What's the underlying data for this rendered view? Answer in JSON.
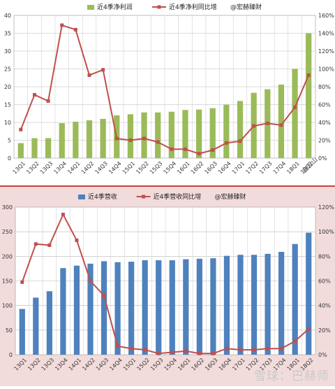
{
  "chart_data": [
    {
      "type": "bar+line",
      "categories": [
        "13Q1",
        "13Q2",
        "13Q3",
        "13Q4",
        "14Q1",
        "14Q2",
        "14Q3",
        "14Q4",
        "15Q1",
        "15Q2",
        "15Q3",
        "15Q4",
        "16Q1",
        "16Q2",
        "16Q3",
        "16Q4",
        "17Q1",
        "17Q2",
        "17Q3",
        "17Q4",
        "18Q1",
        "18Q2"
      ],
      "legend": [
        "近4季净利润",
        "近4季净利同比增",
        "@宏赫臻财"
      ],
      "legend_position": "top",
      "series": [
        {
          "name": "近4季净利润",
          "kind": "bar",
          "axis": "left",
          "color": "#9bbb59",
          "values": [
            4.2,
            5.6,
            5.6,
            9.8,
            10.2,
            10.6,
            11,
            12,
            12.3,
            12.8,
            12.8,
            13,
            13.5,
            13.6,
            14,
            15,
            16,
            18.3,
            19.3,
            20.6,
            25,
            35
          ]
        },
        {
          "name": "近4季净利同比增",
          "kind": "line",
          "axis": "right",
          "color": "#c0504d",
          "values": [
            32,
            71,
            64,
            149,
            144,
            93,
            99,
            22,
            20,
            22,
            18,
            10,
            10,
            5,
            9,
            17,
            19,
            36,
            39,
            37,
            57,
            93
          ]
        }
      ],
      "ylim_left": [
        0,
        40
      ],
      "ylim_right": [
        0,
        160
      ],
      "yticks_left": [
        "0",
        "5",
        "10",
        "15",
        "20",
        "25",
        "30",
        "35",
        "40"
      ],
      "yticks_right": [
        "0%",
        "20%",
        "40%",
        "60%",
        "80%",
        "100%",
        "120%",
        "140%",
        "160%"
      ],
      "grid": true,
      "annotation": "白云山"
    },
    {
      "type": "bar+line",
      "categories": [
        "13Q1",
        "13Q2",
        "13Q3",
        "13Q4",
        "14Q1",
        "14Q2",
        "14Q3",
        "14Q4",
        "15Q1",
        "15Q2",
        "15Q3",
        "15Q4",
        "16Q1",
        "16Q2",
        "16Q3",
        "16Q4",
        "17Q1",
        "17Q2",
        "17Q3",
        "17Q4",
        "18Q1",
        "18Q2"
      ],
      "legend": [
        "近4季营收",
        "近4季营收同比增",
        "@宏赫臻财"
      ],
      "legend_position": "top",
      "series": [
        {
          "name": "近4季营收",
          "kind": "bar",
          "axis": "left",
          "color": "#4f81bd",
          "values": [
            93,
            116,
            129,
            176,
            181,
            185,
            190,
            188,
            189,
            192,
            192,
            192,
            194,
            195,
            196,
            201,
            203,
            203,
            205,
            209,
            225,
            248
          ]
        },
        {
          "name": "近4季营收同比增",
          "kind": "line",
          "axis": "right",
          "color": "#c0504d",
          "values": [
            59,
            90,
            89,
            114,
            93,
            60,
            48,
            7,
            5,
            4,
            1,
            2,
            3,
            1,
            1,
            5,
            4,
            4,
            5,
            5,
            11,
            21
          ]
        }
      ],
      "ylim_left": [
        0,
        300
      ],
      "ylim_right": [
        0,
        120
      ],
      "yticks_left": [
        "0",
        "50",
        "100",
        "150",
        "200",
        "250",
        "300"
      ],
      "yticks_right": [
        "0%",
        "20%",
        "40%",
        "60%",
        "80%",
        "100%",
        "120%"
      ],
      "grid": true
    }
  ],
  "watermark": "雪球：巴赫师"
}
